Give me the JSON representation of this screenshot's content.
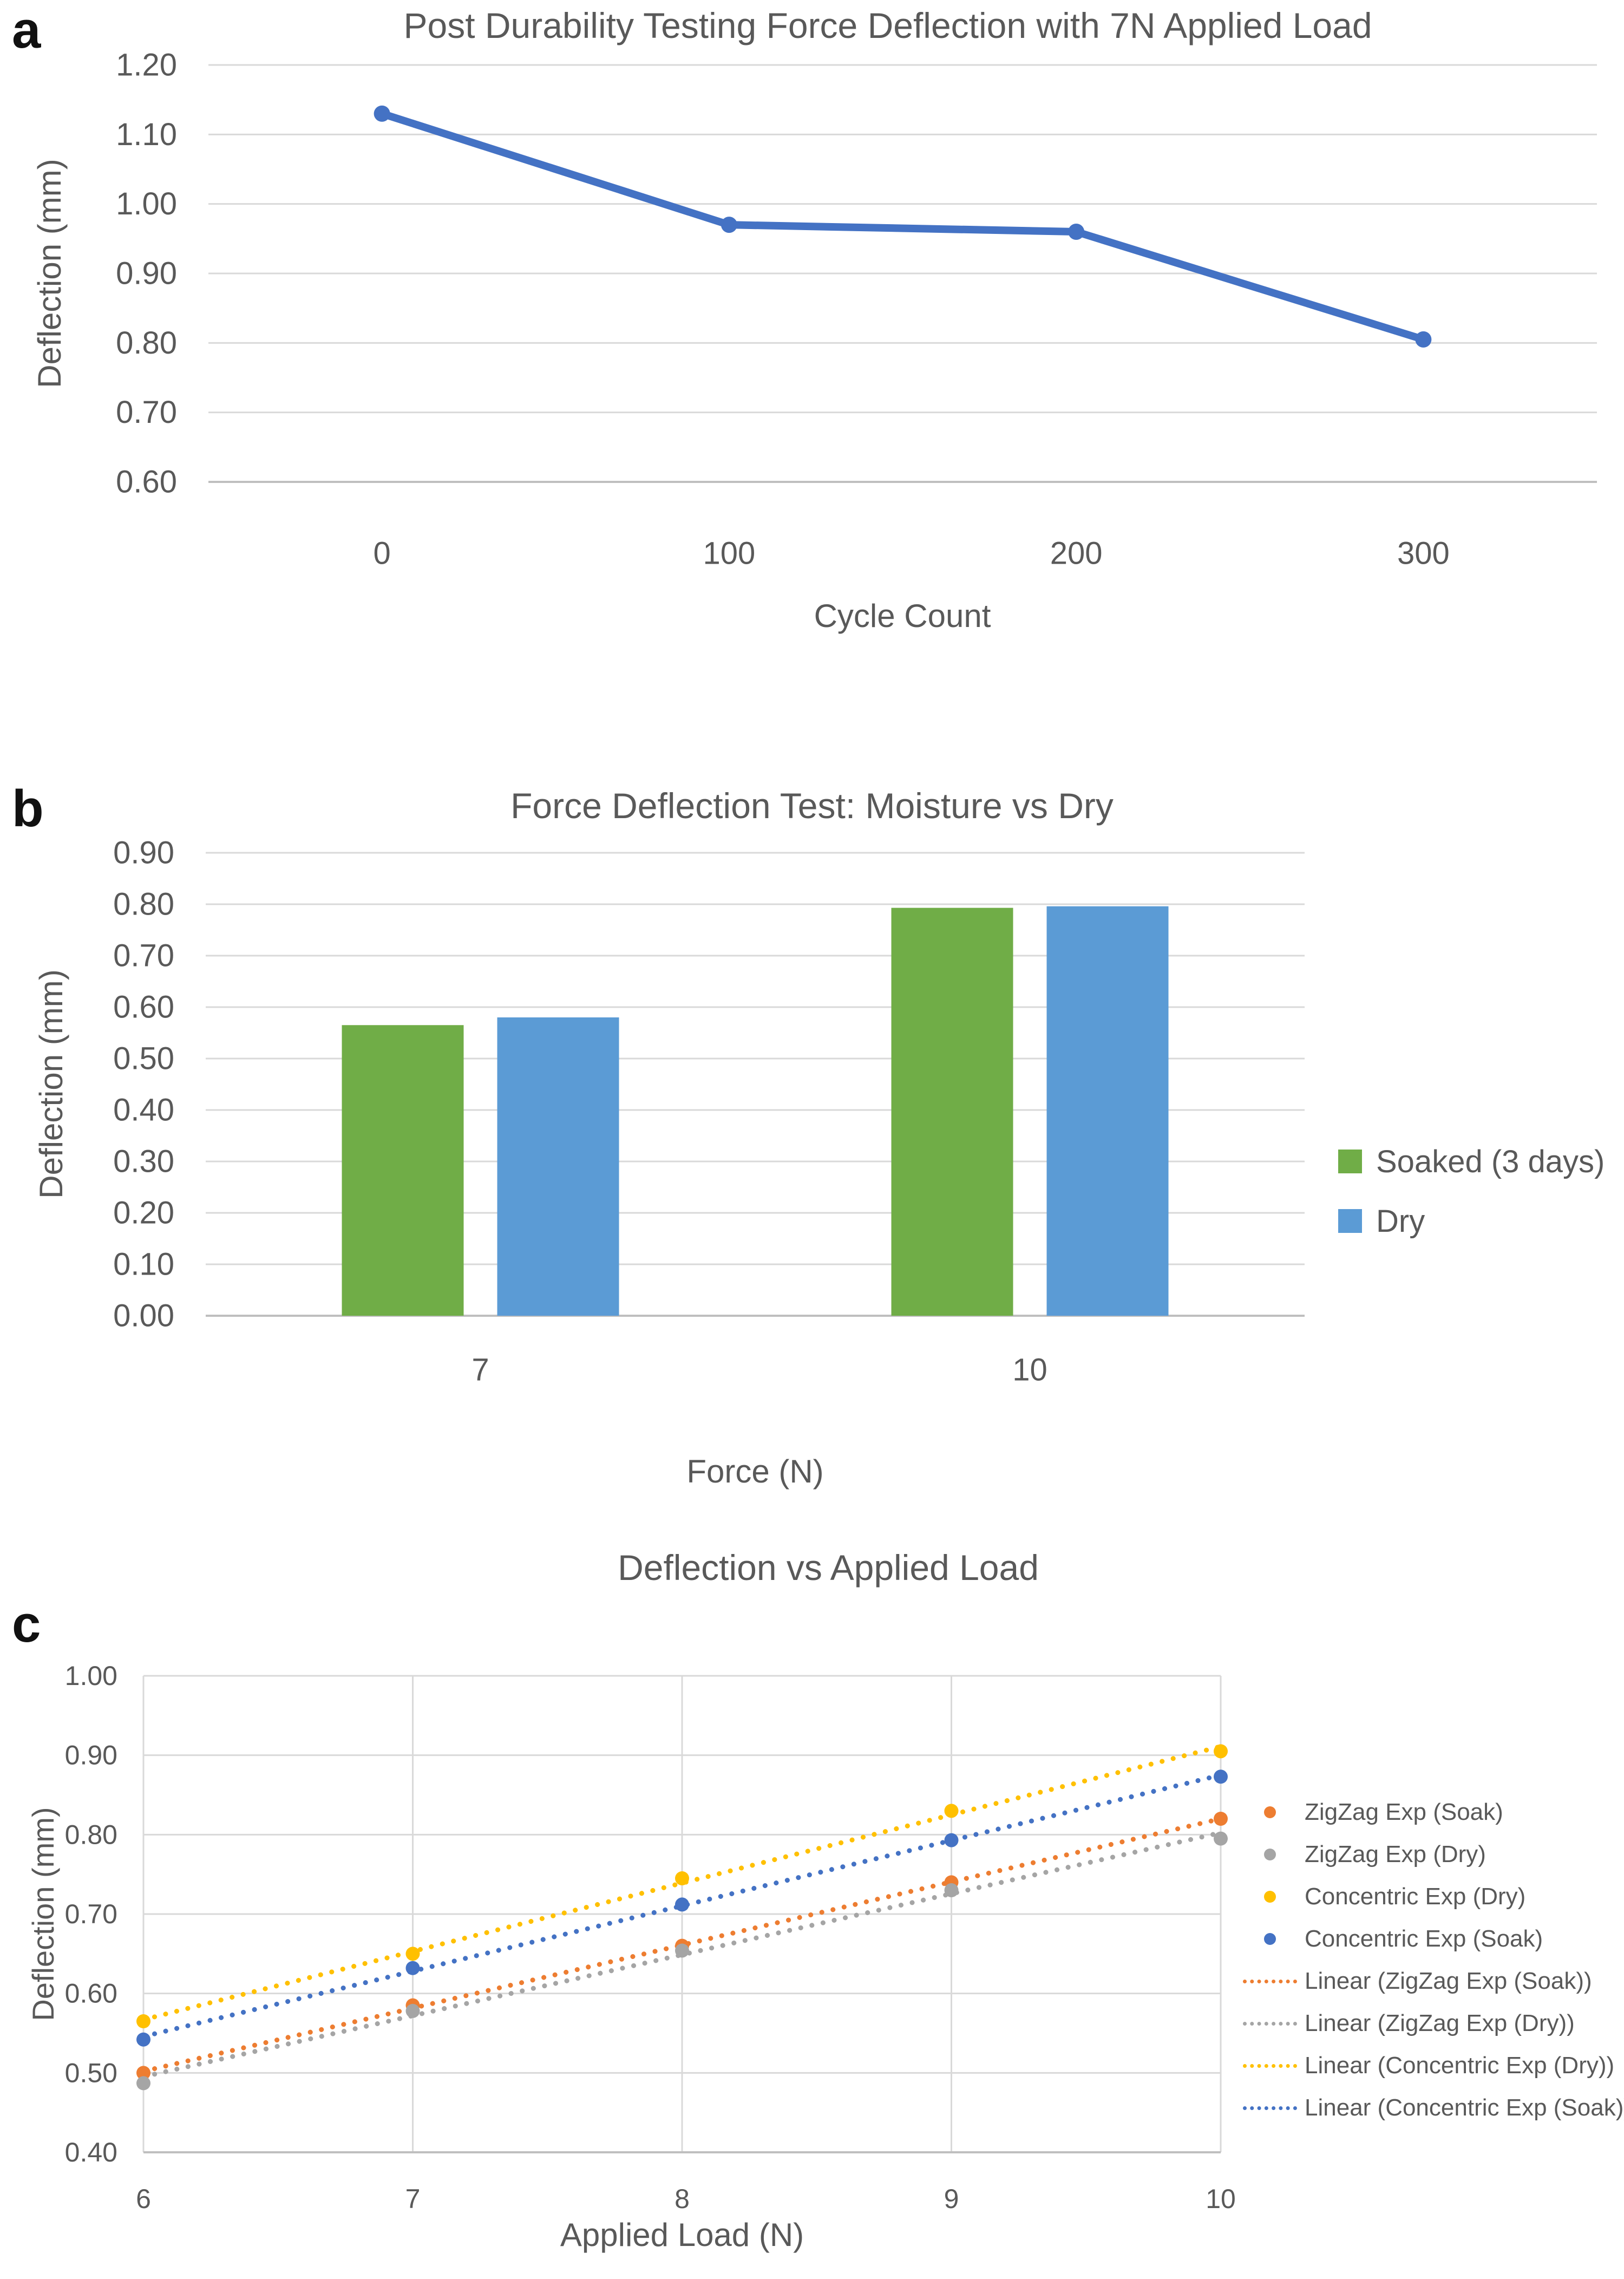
{
  "figure": {
    "panels": [
      {
        "letter": "a"
      },
      {
        "letter": "b"
      },
      {
        "letter": "c"
      }
    ]
  },
  "colors": {
    "gridline": "#d9d9d9",
    "axis_line": "#bfbfbf",
    "text": "#595959"
  },
  "chart_data": [
    {
      "type": "line",
      "title": "Post Durability Testing Force Deflection with 7N Applied Load",
      "xlabel": "Cycle Count",
      "ylabel": "Deflection (mm)",
      "categories": [
        "0",
        "100",
        "200",
        "300"
      ],
      "series": [
        {
          "name": "Deflection",
          "color": "#4472C4",
          "values": [
            1.13,
            0.97,
            0.96,
            0.805
          ]
        }
      ],
      "ylim": [
        0.6,
        1.2
      ],
      "ytick_step": 0.1,
      "ytick_labels": [
        "1.20",
        "1.10",
        "1.00",
        "0.90",
        "0.80",
        "0.70",
        "0.60"
      ],
      "grid": "horizontal",
      "legend_position": "none"
    },
    {
      "type": "bar",
      "title": "Force Deflection Test: Moisture vs Dry",
      "xlabel": "Force (N)",
      "ylabel": "Deflection (mm)",
      "categories": [
        "7",
        "10"
      ],
      "series": [
        {
          "name": "Soaked (3 days)",
          "color": "#70AD47",
          "values": [
            0.565,
            0.793
          ]
        },
        {
          "name": "Dry",
          "color": "#5B9BD5",
          "values": [
            0.58,
            0.796
          ]
        }
      ],
      "ylim": [
        0.0,
        0.9
      ],
      "ytick_step": 0.1,
      "ytick_labels": [
        "0.90",
        "0.80",
        "0.70",
        "0.60",
        "0.50",
        "0.40",
        "0.30",
        "0.20",
        "0.10",
        "0.00"
      ],
      "grid": "horizontal",
      "legend_position": "right"
    },
    {
      "type": "scatter",
      "title": "Deflection vs Applied Load",
      "xlabel": "Applied Load (N)",
      "ylabel": "Deflection (mm)",
      "x": [
        6,
        7,
        8,
        9,
        10
      ],
      "series": [
        {
          "name": "ZigZag Exp (Soak)",
          "color": "#ED7D31",
          "values": [
            0.5,
            0.585,
            0.66,
            0.74,
            0.82
          ]
        },
        {
          "name": "ZigZag Exp (Dry)",
          "color": "#A5A5A5",
          "values": [
            0.487,
            0.578,
            0.654,
            0.73,
            0.795
          ]
        },
        {
          "name": "Concentric Exp (Dry)",
          "color": "#FFC000",
          "values": [
            0.565,
            0.65,
            0.745,
            0.83,
            0.905
          ]
        },
        {
          "name": "Concentric Exp (Soak)",
          "color": "#4472C4",
          "values": [
            0.542,
            0.632,
            0.712,
            0.793,
            0.873
          ]
        }
      ],
      "trendlines": [
        {
          "name": "Linear (ZigZag Exp (Soak))",
          "color": "#ED7D31",
          "fit_of_series": 0
        },
        {
          "name": "Linear (ZigZag Exp (Dry))",
          "color": "#A5A5A5",
          "fit_of_series": 1
        },
        {
          "name": "Linear (Concentric Exp (Dry))",
          "color": "#FFC000",
          "fit_of_series": 2
        },
        {
          "name": "Linear (Concentric Exp (Soak))",
          "color": "#4472C4",
          "fit_of_series": 3
        }
      ],
      "xlim": [
        6,
        10
      ],
      "xtick_labels": [
        "6",
        "7",
        "8",
        "9",
        "10"
      ],
      "ylim": [
        0.4,
        1.0
      ],
      "ytick_step": 0.1,
      "ytick_labels": [
        "1.00",
        "0.90",
        "0.80",
        "0.70",
        "0.60",
        "0.50",
        "0.40"
      ],
      "grid": "both",
      "legend_position": "right"
    }
  ]
}
